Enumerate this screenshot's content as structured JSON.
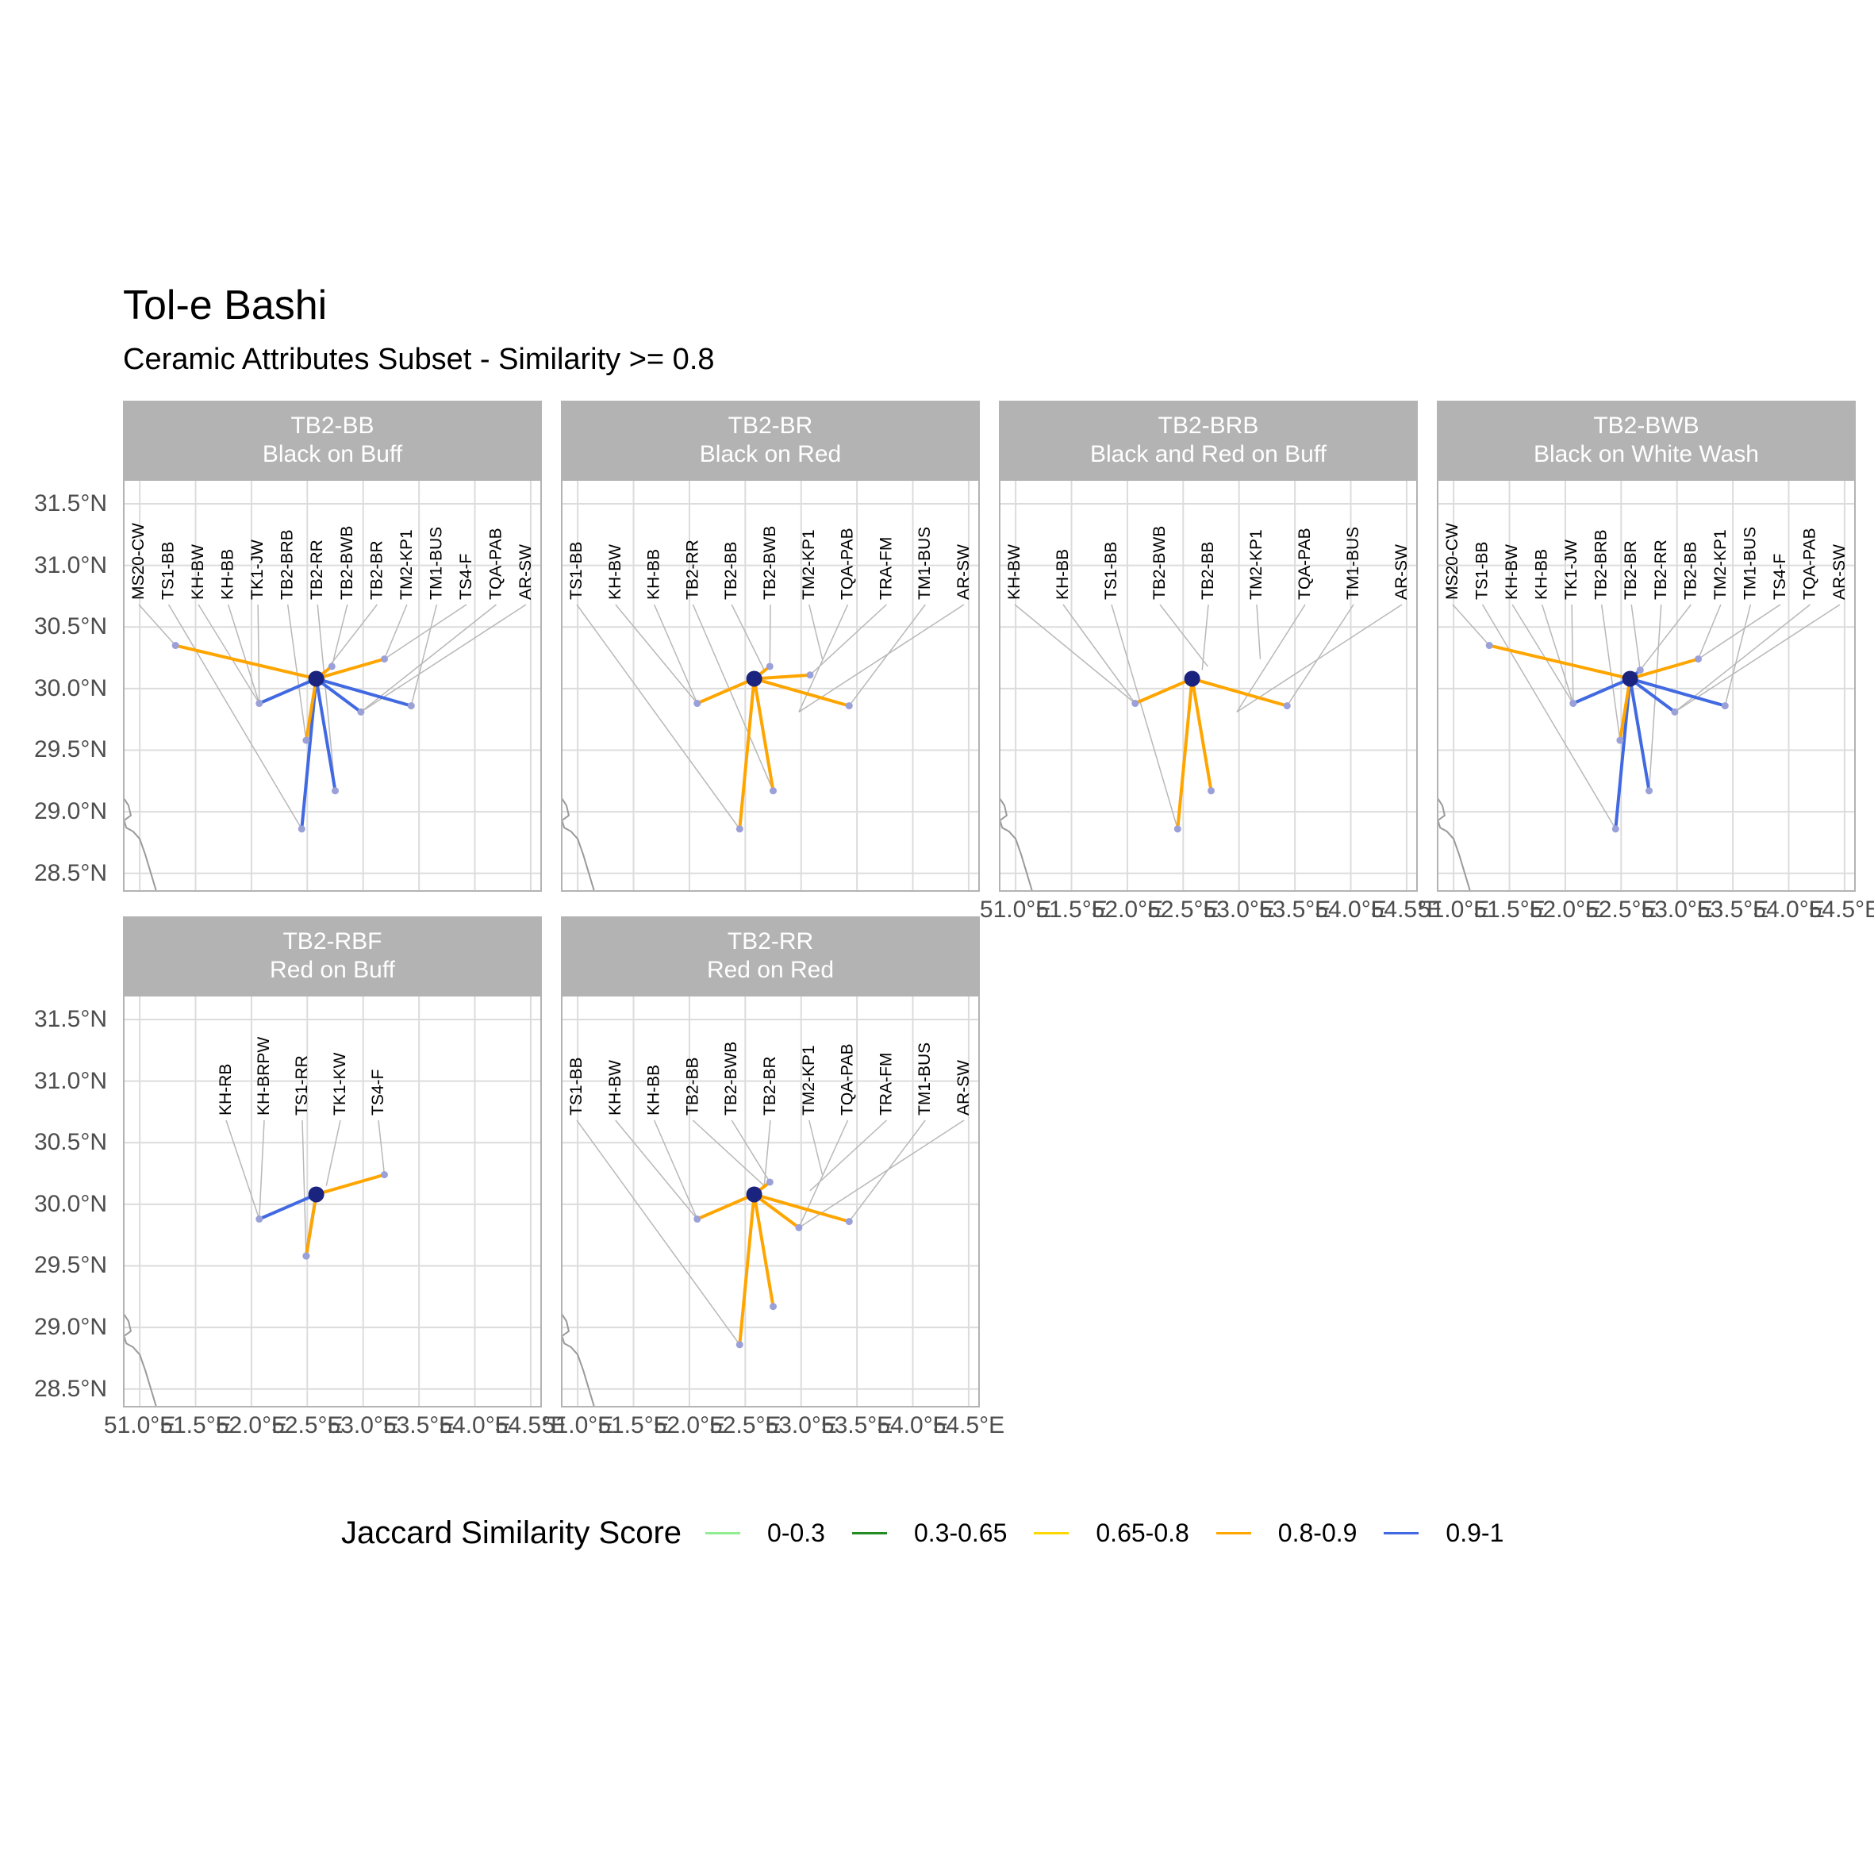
{
  "title": "Tol-e Bashi",
  "subtitle": "Ceramic Attributes Subset - Similarity >= 0.8",
  "y_ticks": [
    "31.5°N",
    "31.0°N",
    "30.5°N",
    "30.0°N",
    "29.5°N",
    "29.0°N",
    "28.5°N"
  ],
  "x_ticks": [
    "51.0°E",
    "51.5°E",
    "52.0°E",
    "52.5°E",
    "53.0°E",
    "53.5°E",
    "54.0°E",
    "54.5°E"
  ],
  "legend": {
    "title": "Jaccard Similarity Score",
    "items": [
      {
        "label": "0-0.3",
        "color": "#90ee90"
      },
      {
        "label": "0.3-0.65",
        "color": "#228b22"
      },
      {
        "label": "0.65-0.8",
        "color": "#ffd700"
      },
      {
        "label": "0.8-0.9",
        "color": "#ffa500"
      },
      {
        "label": "0.9-1",
        "color": "#4169e1"
      }
    ]
  },
  "colors": {
    "orange": "#ffa500",
    "blue": "#4169e1",
    "origin": "#1a237e",
    "site": "#9aa0d8",
    "leader": "#b8b8b8"
  },
  "chart_data": {
    "type": "map",
    "xlim": [
      50.85,
      54.6
    ],
    "ylim": [
      28.35,
      31.7
    ],
    "origin": {
      "lon": 52.58,
      "lat": 30.08
    },
    "sites": {
      "MS20-CW": [
        51.32,
        30.35
      ],
      "TS1-BB": [
        52.45,
        28.86
      ],
      "KH-BW": [
        52.07,
        29.88
      ],
      "KH-BB": [
        52.07,
        29.88
      ],
      "TK1-JW": [
        52.07,
        29.88
      ],
      "TB2-BRB": [
        52.49,
        29.58
      ],
      "TB2-RR": [
        52.75,
        29.17
      ],
      "TB2-BWB": [
        52.72,
        30.18
      ],
      "TB2-BR": [
        52.67,
        30.15
      ],
      "TB2-BB": [
        52.67,
        30.15
      ],
      "TM2-KP1": [
        53.19,
        30.24
      ],
      "TM1-BUS": [
        53.43,
        29.86
      ],
      "TS4-F": [
        53.19,
        30.24
      ],
      "TQA-PAB": [
        52.98,
        29.81
      ],
      "AR-SW": [
        52.98,
        29.81
      ],
      "TRA-FM": [
        53.08,
        30.11
      ],
      "KH-RB": [
        52.07,
        29.88
      ],
      "KH-BRPW": [
        52.07,
        29.88
      ],
      "TS1-RR": [
        52.49,
        29.58
      ],
      "TK1-KW": [
        52.67,
        30.15
      ]
    },
    "panels": [
      {
        "code": "TB2-BB",
        "name": "Black on Buff",
        "labels": [
          "MS20-CW",
          "TS1-BB",
          "KH-BW",
          "KH-BB",
          "TK1-JW",
          "TB2-BRB",
          "TB2-RR",
          "TB2-BWB",
          "TB2-BR",
          "TM2-KP1",
          "TM1-BUS",
          "TS4-F",
          "TQA-PAB",
          "AR-SW"
        ],
        "links": [
          {
            "site": "MS20-CW",
            "score": "0.8-0.9"
          },
          {
            "site": "TS1-BB",
            "score": "0.9-1"
          },
          {
            "site": "KH-BW",
            "score": "0.9-1"
          },
          {
            "site": "TB2-BRB",
            "score": "0.8-0.9"
          },
          {
            "site": "TB2-RR",
            "score": "0.9-1"
          },
          {
            "site": "TB2-BWB",
            "score": "0.8-0.9"
          },
          {
            "site": "TM2-KP1",
            "score": "0.8-0.9"
          },
          {
            "site": "TM1-BUS",
            "score": "0.9-1"
          },
          {
            "site": "TQA-PAB",
            "score": "0.9-1"
          }
        ]
      },
      {
        "code": "TB2-BR",
        "name": "Black on Red",
        "labels": [
          "TS1-BB",
          "KH-BW",
          "KH-BB",
          "TB2-RR",
          "TB2-BB",
          "TB2-BWB",
          "TM2-KP1",
          "TQA-PAB",
          "TRA-FM",
          "TM1-BUS",
          "AR-SW"
        ],
        "links": [
          {
            "site": "TS1-BB",
            "score": "0.8-0.9"
          },
          {
            "site": "KH-BW",
            "score": "0.8-0.9"
          },
          {
            "site": "TB2-RR",
            "score": "0.8-0.9"
          },
          {
            "site": "TB2-BWB",
            "score": "0.8-0.9"
          },
          {
            "site": "TRA-FM",
            "score": "0.8-0.9"
          },
          {
            "site": "TM1-BUS",
            "score": "0.8-0.9"
          }
        ]
      },
      {
        "code": "TB2-BRB",
        "name": "Black and Red on Buff",
        "labels": [
          "KH-BW",
          "KH-BB",
          "TS1-BB",
          "TB2-BWB",
          "TB2-BB",
          "TM2-KP1",
          "TQA-PAB",
          "TM1-BUS",
          "AR-SW"
        ],
        "links": [
          {
            "site": "KH-BW",
            "score": "0.8-0.9"
          },
          {
            "site": "TS1-BB",
            "score": "0.8-0.9"
          },
          {
            "site": "TB2-RR",
            "score": "0.8-0.9"
          },
          {
            "site": "TM1-BUS",
            "score": "0.8-0.9"
          }
        ]
      },
      {
        "code": "TB2-BWB",
        "name": "Black on White Wash",
        "labels": [
          "MS20-CW",
          "TS1-BB",
          "KH-BW",
          "KH-BB",
          "TK1-JW",
          "TB2-BRB",
          "TB2-BR",
          "TB2-RR",
          "TB2-BB",
          "TM2-KP1",
          "TM1-BUS",
          "TS4-F",
          "TQA-PAB",
          "AR-SW"
        ],
        "links": [
          {
            "site": "MS20-CW",
            "score": "0.8-0.9"
          },
          {
            "site": "TS1-BB",
            "score": "0.9-1"
          },
          {
            "site": "KH-BW",
            "score": "0.9-1"
          },
          {
            "site": "TB2-BRB",
            "score": "0.8-0.9"
          },
          {
            "site": "TB2-RR",
            "score": "0.9-1"
          },
          {
            "site": "TB2-BR",
            "score": "0.9-1"
          },
          {
            "site": "TM2-KP1",
            "score": "0.8-0.9"
          },
          {
            "site": "TM1-BUS",
            "score": "0.9-1"
          },
          {
            "site": "TQA-PAB",
            "score": "0.9-1"
          }
        ]
      },
      {
        "code": "TB2-RBF",
        "name": "Red on Buff",
        "labels": [
          "KH-RB",
          "KH-BRPW",
          "TS1-RR",
          "TK1-KW",
          "TS4-F"
        ],
        "links": [
          {
            "site": "KH-RB",
            "score": "0.9-1"
          },
          {
            "site": "TS1-RR",
            "score": "0.9-1"
          },
          {
            "site": "TB2-BRB",
            "score": "0.8-0.9"
          },
          {
            "site": "TS4-F",
            "score": "0.8-0.9"
          }
        ]
      },
      {
        "code": "TB2-RR",
        "name": "Red on Red",
        "labels": [
          "TS1-BB",
          "KH-BW",
          "KH-BB",
          "TB2-BB",
          "TB2-BWB",
          "TB2-BR",
          "TM2-KP1",
          "TQA-PAB",
          "TRA-FM",
          "TM1-BUS",
          "AR-SW"
        ],
        "links": [
          {
            "site": "TS1-BB",
            "score": "0.8-0.9"
          },
          {
            "site": "KH-BW",
            "score": "0.8-0.9"
          },
          {
            "site": "TB2-RR",
            "score": "0.8-0.9"
          },
          {
            "site": "TB2-BWB",
            "score": "0.8-0.9"
          },
          {
            "site": "TQA-PAB",
            "score": "0.8-0.9"
          },
          {
            "site": "TM1-BUS",
            "score": "0.8-0.9"
          }
        ]
      }
    ]
  }
}
